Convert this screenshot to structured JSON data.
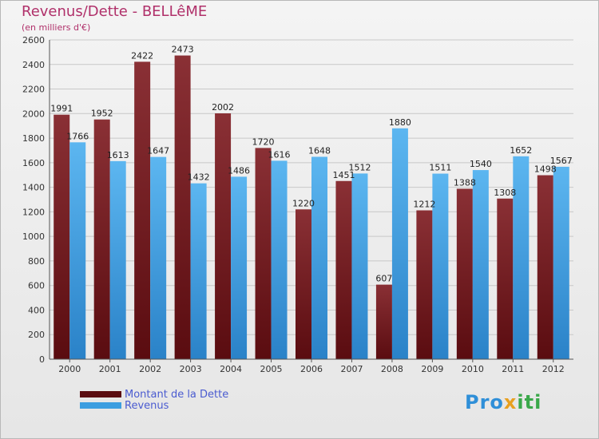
{
  "chart_data": {
    "type": "bar",
    "title": "Revenus/Dette - BELLêME",
    "subtitle": "(en milliers d'€)",
    "categories": [
      "2000",
      "2001",
      "2002",
      "2003",
      "2004",
      "2005",
      "2006",
      "2007",
      "2008",
      "2009",
      "2010",
      "2011",
      "2012"
    ],
    "series": [
      {
        "name": "Montant de la Dette",
        "color": "#7a1e22",
        "values": [
          1991,
          1952,
          2422,
          2473,
          2002,
          1720,
          1220,
          1451,
          607,
          1212,
          1388,
          1308,
          1498
        ]
      },
      {
        "name": "Revenus",
        "color": "#3c9ee0",
        "values": [
          1766,
          1613,
          1647,
          1432,
          1486,
          1616,
          1648,
          1512,
          1880,
          1511,
          1540,
          1652,
          1567
        ]
      }
    ],
    "ylim": [
      0,
      2600
    ],
    "yticks": [
      0,
      200,
      400,
      600,
      800,
      1000,
      1200,
      1400,
      1600,
      1800,
      2000,
      2200,
      2400,
      2600
    ],
    "grid": true,
    "legend": "bottom-left"
  },
  "legend": {
    "debt_label": "Montant de la Dette",
    "revenue_label": "Revenus"
  },
  "brand": {
    "part1": "Pro",
    "part2": "x",
    "part3": "iti"
  }
}
